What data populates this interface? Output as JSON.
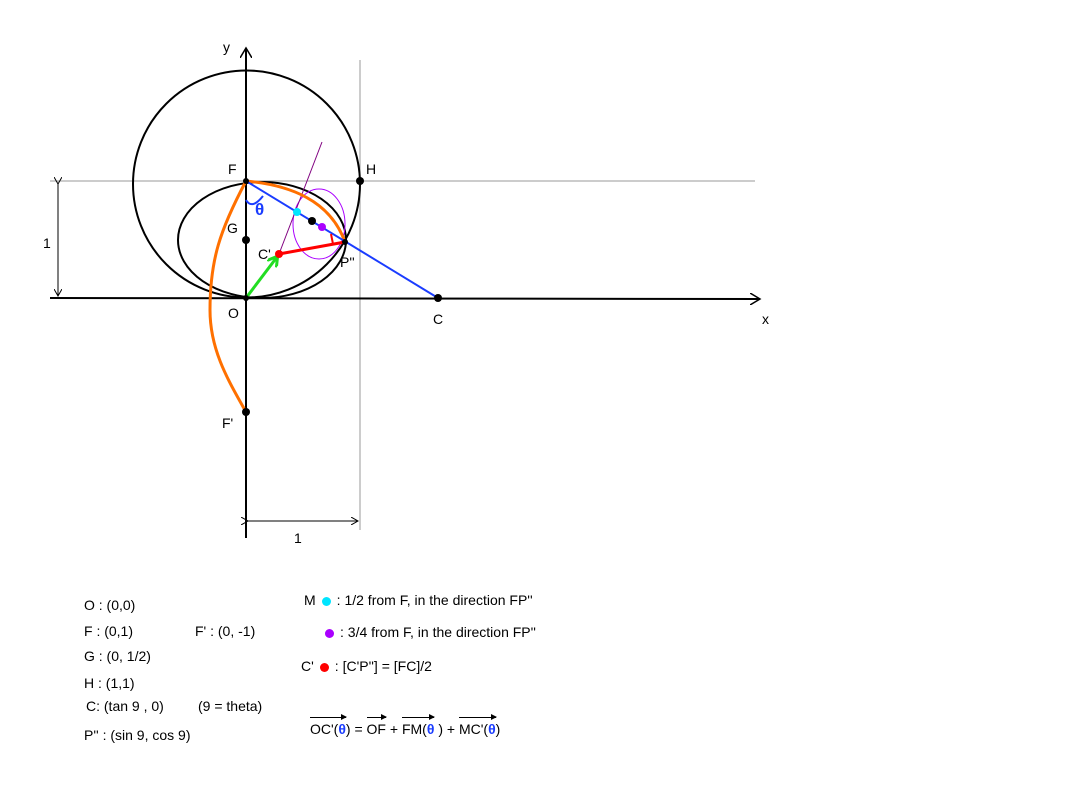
{
  "axes": {
    "x_label": "x",
    "y_label": "y",
    "unit_x_label": "1",
    "unit_y_label": "1"
  },
  "points": {
    "O": "O",
    "F": "F",
    "G": "G",
    "H": "H",
    "C": "C",
    "C_prime": "C'",
    "P_dd": "P''",
    "F_prime": "F'",
    "theta": "θ"
  },
  "colors": {
    "line_fp": "#1a3cff",
    "curve": "#ff7000",
    "c_prime": "#ff0000",
    "oc_vector": "#22dd22",
    "m_point": "#00e5ff",
    "three_quarter_point": "#aa00ff",
    "ellipse": "#aa00ff"
  },
  "legend": {
    "coords": [
      "O : (0,0)",
      "F : (0,1)",
      "F' : (0, -1)",
      "G : (0, 1/2)",
      "H : (1,1)",
      "C: (tan 9 , 0)",
      "(9 = theta)",
      "P'' : (sin 9, cos 9)"
    ],
    "m_label": "M",
    "m_desc": ": 1/2 from F, in the direction FP''",
    "q_desc": ": 3/4 from F, in the direction FP''",
    "c_label": "C'",
    "c_desc": ": [C'P''] = [FC]/2",
    "eq": {
      "oc": "OC'(",
      "theta": "θ",
      "close_eq": ") = ",
      "of": "OF",
      "plus1": " + ",
      "fm": "FM(",
      "close_plus": " ) + ",
      "mc": "MC'(",
      "close": ")"
    }
  }
}
